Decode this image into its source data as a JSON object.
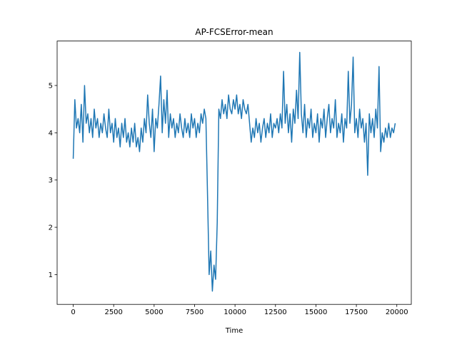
{
  "chart_data": {
    "type": "line",
    "title": "AP-FCSError-mean",
    "x_label": "Time",
    "x": [
      0,
      100,
      200,
      300,
      400,
      500,
      600,
      700,
      800,
      900,
      1000,
      1100,
      1200,
      1300,
      1400,
      1500,
      1600,
      1700,
      1800,
      1900,
      2000,
      2100,
      2200,
      2300,
      2400,
      2500,
      2600,
      2700,
      2800,
      2900,
      3000,
      3100,
      3200,
      3300,
      3400,
      3500,
      3600,
      3700,
      3800,
      3900,
      4000,
      4100,
      4200,
      4300,
      4400,
      4500,
      4600,
      4700,
      4800,
      4900,
      5000,
      5100,
      5200,
      5300,
      5400,
      5500,
      5600,
      5700,
      5800,
      5900,
      6000,
      6100,
      6200,
      6300,
      6400,
      6500,
      6600,
      6700,
      6800,
      6900,
      7000,
      7100,
      7200,
      7300,
      7400,
      7500,
      7600,
      7700,
      7800,
      7900,
      8000,
      8100,
      8200,
      8300,
      8400,
      8500,
      8600,
      8700,
      8800,
      8900,
      9000,
      9100,
      9200,
      9300,
      9400,
      9500,
      9600,
      9700,
      9800,
      9900,
      10000,
      10100,
      10200,
      10300,
      10400,
      10500,
      10600,
      10700,
      10800,
      10900,
      11000,
      11100,
      11200,
      11300,
      11400,
      11500,
      11600,
      11700,
      11800,
      11900,
      12000,
      12100,
      12200,
      12300,
      12400,
      12500,
      12600,
      12700,
      12800,
      12900,
      13000,
      13100,
      13200,
      13300,
      13400,
      13500,
      13600,
      13700,
      13800,
      13900,
      14000,
      14100,
      14200,
      14300,
      14400,
      14500,
      14600,
      14700,
      14800,
      14900,
      15000,
      15100,
      15200,
      15300,
      15400,
      15500,
      15600,
      15700,
      15800,
      15900,
      16000,
      16100,
      16200,
      16300,
      16400,
      16500,
      16600,
      16700,
      16800,
      16900,
      17000,
      17100,
      17200,
      17300,
      17400,
      17500,
      17600,
      17700,
      17800,
      17900,
      18000,
      18100,
      18200,
      18300,
      18400,
      18500,
      18600,
      18700,
      18800,
      18900,
      19000,
      19100,
      19200,
      19300,
      19400,
      19500,
      19600,
      19700,
      19800,
      19900
    ],
    "series": [
      {
        "name": "AP-FCSError-mean",
        "color": "#1f77b4",
        "values": [
          3.45,
          4.7,
          4.1,
          4.3,
          4.0,
          4.6,
          3.8,
          5.0,
          4.2,
          4.4,
          4.0,
          4.3,
          3.9,
          4.5,
          4.1,
          4.3,
          3.9,
          4.2,
          4.0,
          4.4,
          4.1,
          3.9,
          4.5,
          4.0,
          4.2,
          3.8,
          4.3,
          3.9,
          4.1,
          3.7,
          4.2,
          3.9,
          4.3,
          3.8,
          4.0,
          3.7,
          4.1,
          3.8,
          4.2,
          3.7,
          3.9,
          3.6,
          4.1,
          3.8,
          4.3,
          4.0,
          4.8,
          4.2,
          3.9,
          4.5,
          3.6,
          4.3,
          4.1,
          4.6,
          5.2,
          4.0,
          4.7,
          4.2,
          4.9,
          3.9,
          4.4,
          4.1,
          4.3,
          3.9,
          4.2,
          4.0,
          4.4,
          4.1,
          3.9,
          4.3,
          4.0,
          4.2,
          3.9,
          4.4,
          4.1,
          4.3,
          3.9,
          4.2,
          4.0,
          4.4,
          4.2,
          4.5,
          4.3,
          2.7,
          1.0,
          1.5,
          0.65,
          1.2,
          0.9,
          2.1,
          4.5,
          4.3,
          4.7,
          4.4,
          4.6,
          4.3,
          4.8,
          4.5,
          4.4,
          4.7,
          4.5,
          4.8,
          4.4,
          4.6,
          4.3,
          4.7,
          4.5,
          4.4,
          4.6,
          4.2,
          3.8,
          4.1,
          3.9,
          4.3,
          4.0,
          4.2,
          3.8,
          4.1,
          4.3,
          3.9,
          4.2,
          4.0,
          4.4,
          3.9,
          4.2,
          4.1,
          4.3,
          4.0,
          4.4,
          4.1,
          5.3,
          4.2,
          4.6,
          4.0,
          4.4,
          3.8,
          4.5,
          4.2,
          4.9,
          4.3,
          5.7,
          4.4,
          4.0,
          4.6,
          3.9,
          4.3,
          4.1,
          4.5,
          3.9,
          4.2,
          4.0,
          4.4,
          3.8,
          4.3,
          4.1,
          4.5,
          3.9,
          4.3,
          4.6,
          4.0,
          4.3,
          4.1,
          4.7,
          3.9,
          4.2,
          4.0,
          4.4,
          3.8,
          4.3,
          4.1,
          5.3,
          4.2,
          4.6,
          5.6,
          4.0,
          4.3,
          3.9,
          4.5,
          4.1,
          4.3,
          3.8,
          4.2,
          3.1,
          4.4,
          4.0,
          4.3,
          3.9,
          4.5,
          4.1,
          5.4,
          3.6,
          4.0,
          3.8,
          4.1,
          3.9,
          4.2,
          3.9,
          4.1,
          4.0,
          4.2
        ]
      }
    ],
    "xlim": [
      -995,
      20895
    ],
    "xticks": [
      0,
      2500,
      5000,
      7500,
      10000,
      12500,
      15000,
      17500,
      20000
    ],
    "ylim": [
      0.37,
      5.94
    ],
    "yticks": [
      1,
      2,
      3,
      4,
      5
    ],
    "grid": false
  }
}
